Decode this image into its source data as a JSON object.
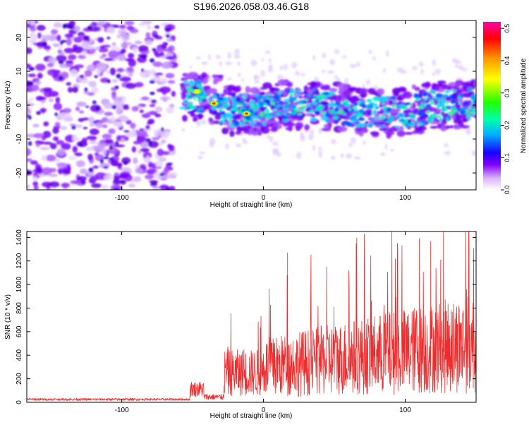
{
  "title": "S196.2026.058.03.46.G18",
  "chart_data": [
    {
      "type": "heatmap",
      "xlabel": "Height of straight line (km)",
      "ylabel": "Frequency (Hz)",
      "xlim": [
        -167,
        150
      ],
      "ylim": [
        -25,
        25
      ],
      "x_ticks": [
        "-100",
        "0",
        "100"
      ],
      "y_ticks": [
        "-20",
        "-10",
        "0",
        "10",
        "20"
      ],
      "colorbar": {
        "label": "Normalized spectral amplitude",
        "range": [
          0.0,
          0.52
        ],
        "ticks": [
          "0.0",
          "0.1",
          "0.2",
          "0.3",
          "0.4",
          "0.5"
        ],
        "colors": [
          "#ffffff",
          "#cc88ff",
          "#7a00ff",
          "#0000ff",
          "#00ccff",
          "#00ff66",
          "#ffff00",
          "#ff9900",
          "#ff0000",
          "#ff00aa"
        ]
      },
      "description_regions": [
        {
          "x_range": [
            -167,
            -63
          ],
          "freq_range": [
            -25,
            25
          ],
          "level": "broadband noise"
        },
        {
          "x_range": [
            -57,
            150
          ],
          "freq_center": 0,
          "freq_halfwidth": 6,
          "level": "narrow carrier band"
        }
      ],
      "peak_points": [
        {
          "x": -47,
          "y": 4,
          "value": 0.42
        },
        {
          "x": -35,
          "y": 0.5,
          "value": 0.5
        },
        {
          "x": -12,
          "y": -2.5,
          "value": 0.5
        }
      ]
    },
    {
      "type": "line",
      "xlabel": "Height of straight line (km)",
      "ylabel": "SNR (10 * v/v)",
      "xlim": [
        -167,
        150
      ],
      "ylim": [
        0,
        1450
      ],
      "x_ticks": [
        "-100",
        "0",
        "100"
      ],
      "y_ticks": [
        "0",
        "200",
        "400",
        "600",
        "800",
        "1000",
        "1200",
        "1400"
      ],
      "color": "#ee2e2e",
      "segments": [
        {
          "x_range": [
            -167,
            -52
          ],
          "snr_level": 25
        },
        {
          "x_range": [
            -52,
            -42
          ],
          "snr_level": 150
        },
        {
          "x_range": [
            -42,
            -28
          ],
          "snr_level": 60
        },
        {
          "x_range": [
            -28,
            0
          ],
          "snr_level": 250
        },
        {
          "x_range": [
            0,
            150
          ],
          "snr_level": 420
        }
      ],
      "spikes": [
        {
          "x": 17,
          "y": 1270
        },
        {
          "x": 93,
          "y": 1220
        },
        {
          "x": 110,
          "y": 1390
        },
        {
          "x": 118,
          "y": 1370
        },
        {
          "x": 127,
          "y": 1450
        },
        {
          "x": 145,
          "y": 1150
        }
      ]
    }
  ]
}
